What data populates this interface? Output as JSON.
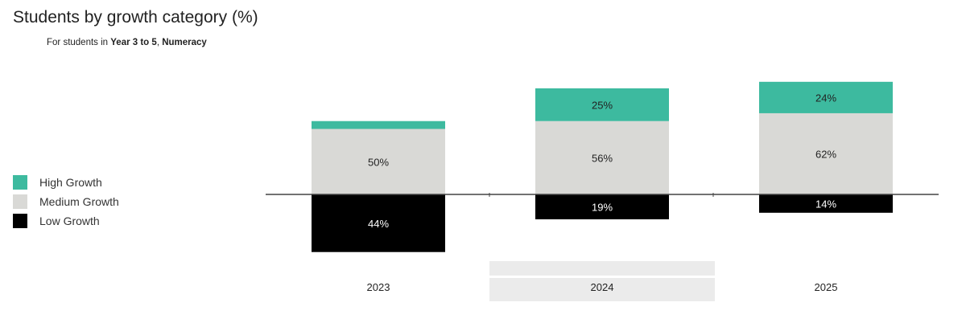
{
  "title": "Students by growth category (%)",
  "subtitle": {
    "prefix": "For students in ",
    "years": "Year 3 to 5",
    "sep": ", ",
    "domain": "Numeracy"
  },
  "colors": {
    "high": "#3dba9f",
    "medium": "#d9d9d6",
    "low": "#000000",
    "highlight_band": "#ebebeb"
  },
  "legend": [
    {
      "label": "High Growth",
      "color": "#3dba9f"
    },
    {
      "label": "Medium Growth",
      "color": "#d9d9d6"
    },
    {
      "label": "Low Growth",
      "color": "#000000"
    }
  ],
  "chart_data": {
    "type": "bar",
    "stacked": true,
    "diverging": true,
    "title": "Students by growth category (%)",
    "categories": [
      "2023",
      "2024",
      "2025"
    ],
    "highlighted_category": "2024",
    "series": [
      {
        "name": "High Growth",
        "values": [
          6,
          25,
          24
        ],
        "labels": [
          "",
          "25%",
          "24%"
        ],
        "direction": "up"
      },
      {
        "name": "Medium Growth",
        "values": [
          50,
          56,
          62
        ],
        "labels": [
          "50%",
          "56%",
          "62%"
        ],
        "direction": "up"
      },
      {
        "name": "Low Growth",
        "values": [
          44,
          19,
          14
        ],
        "labels": [
          "44%",
          "19%",
          "14%"
        ],
        "direction": "down"
      }
    ],
    "legend_position": "left",
    "grid": false
  }
}
